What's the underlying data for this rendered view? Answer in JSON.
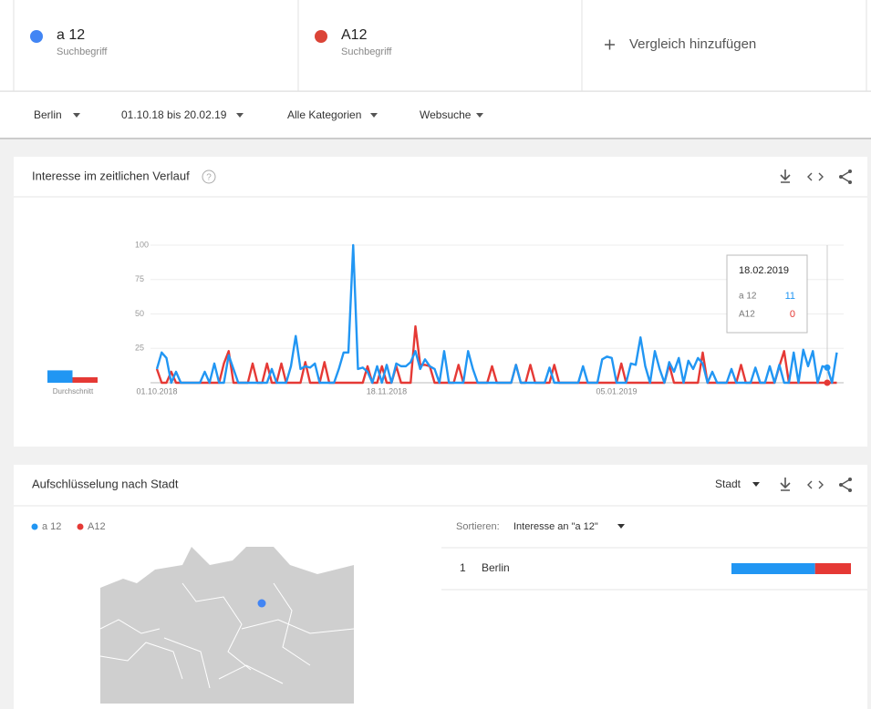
{
  "header": {
    "terms": [
      {
        "name": "a 12",
        "subtitle": "Suchbegriff",
        "color": "#4285f4"
      },
      {
        "name": "A12",
        "subtitle": "Suchbegriff",
        "color": "#db4437"
      }
    ],
    "add_compare": "Vergleich hinzufügen"
  },
  "filters": [
    "Berlin",
    "01.10.18 bis 20.02.19",
    "Alle Kategorien",
    "Websuche"
  ],
  "chart_data": {
    "type": "line",
    "title": "Interesse im zeitlichen Verlauf",
    "average_label": "Durchschnitt",
    "categories": [
      "01.10.2018",
      null,
      null,
      null,
      null,
      null,
      null,
      null,
      null,
      null,
      null,
      null,
      null,
      null,
      null,
      null,
      null,
      null,
      null,
      null,
      null,
      null,
      null,
      null,
      null,
      null,
      null,
      null,
      null,
      null,
      null,
      null,
      null,
      null,
      null,
      null,
      null,
      null,
      null,
      null,
      null,
      null,
      null,
      null,
      null,
      null,
      null,
      null,
      "18.11.2018",
      null,
      null,
      null,
      null,
      null,
      null,
      null,
      null,
      null,
      null,
      null,
      null,
      null,
      null,
      null,
      null,
      null,
      null,
      null,
      null,
      null,
      null,
      null,
      null,
      null,
      null,
      null,
      null,
      null,
      null,
      null,
      null,
      null,
      null,
      null,
      null,
      null,
      null,
      null,
      null,
      null,
      null,
      null,
      null,
      null,
      null,
      null,
      "05.01.2019",
      null,
      null,
      null,
      null,
      null,
      null,
      null,
      null,
      null,
      null,
      null,
      null,
      null,
      null,
      null,
      null,
      null,
      null,
      null,
      null,
      null,
      null,
      null,
      null,
      null,
      null,
      null,
      null,
      null,
      null,
      null,
      null,
      null,
      null,
      null,
      null,
      null,
      null,
      null,
      null,
      null,
      null,
      null,
      null,
      null,
      null
    ],
    "series": [
      {
        "name": "a 12",
        "color": "#2196f3",
        "average": 9,
        "values": [
          10,
          22,
          18,
          0,
          8,
          0,
          0,
          0,
          0,
          0,
          8,
          0,
          14,
          0,
          0,
          20,
          10,
          0,
          0,
          0,
          0,
          0,
          0,
          0,
          10,
          0,
          0,
          0,
          12,
          34,
          10,
          12,
          11,
          14,
          0,
          0,
          0,
          0,
          10,
          22,
          22,
          100,
          10,
          11,
          8,
          0,
          12,
          0,
          13,
          0,
          14,
          12,
          12,
          15,
          23,
          10,
          17,
          12,
          10,
          0,
          23,
          0,
          0,
          0,
          0,
          23,
          10,
          0,
          0,
          0,
          0,
          0,
          0,
          0,
          0,
          13,
          0,
          0,
          0,
          0,
          0,
          0,
          11,
          0,
          0,
          0,
          0,
          0,
          0,
          12,
          0,
          0,
          0,
          17,
          19,
          18,
          0,
          0,
          0,
          14,
          13,
          33,
          12,
          0,
          23,
          10,
          0,
          15,
          8,
          18,
          0,
          16,
          10,
          18,
          14,
          0,
          8,
          0,
          0,
          0,
          10,
          0,
          0,
          0,
          0,
          11,
          0,
          0,
          12,
          0,
          13,
          0,
          0,
          22,
          0,
          24,
          12,
          23,
          0,
          12,
          11,
          0,
          22
        ]
      },
      {
        "name": "A12",
        "color": "#e53935",
        "average": 4,
        "values": [
          10,
          0,
          0,
          8,
          0,
          0,
          0,
          0,
          0,
          0,
          0,
          0,
          0,
          0,
          14,
          23,
          0,
          0,
          0,
          0,
          14,
          0,
          0,
          14,
          0,
          0,
          14,
          0,
          0,
          0,
          0,
          15,
          0,
          0,
          0,
          15,
          0,
          0,
          0,
          0,
          0,
          0,
          0,
          0,
          12,
          0,
          0,
          12,
          0,
          0,
          12,
          0,
          0,
          0,
          41,
          13,
          13,
          12,
          0,
          0,
          0,
          0,
          0,
          13,
          0,
          0,
          0,
          0,
          0,
          0,
          12,
          0,
          0,
          0,
          0,
          13,
          0,
          0,
          13,
          0,
          0,
          0,
          0,
          13,
          0,
          0,
          0,
          0,
          0,
          0,
          0,
          0,
          0,
          0,
          0,
          0,
          0,
          14,
          0,
          0,
          0,
          0,
          0,
          0,
          0,
          0,
          0,
          13,
          0,
          0,
          0,
          0,
          0,
          0,
          22,
          0,
          0,
          0,
          0,
          0,
          0,
          0,
          13,
          0,
          0,
          0,
          0,
          0,
          0,
          0,
          12,
          23,
          0,
          0,
          0,
          0,
          0,
          0,
          0,
          0,
          0,
          0,
          0
        ]
      }
    ],
    "ylim": [
      0,
      100
    ],
    "yticks": [
      25,
      50,
      75,
      100
    ],
    "grid": true,
    "tooltip": {
      "date": "18.02.2019",
      "index": 140
    }
  },
  "city_breakdown": {
    "title": "Aufschlüsselung nach Stadt",
    "level": "Stadt",
    "sort_label": "Sortieren:",
    "sort_value": "Interesse an \"a 12\"",
    "rows": [
      {
        "rank": "1",
        "name": "Berlin",
        "values": [
          70,
          30
        ]
      }
    ]
  }
}
